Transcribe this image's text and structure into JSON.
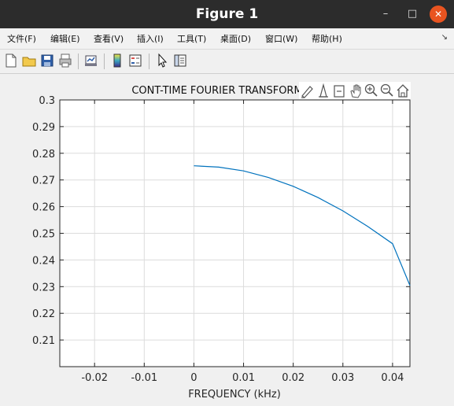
{
  "window": {
    "title": "Figure 1"
  },
  "menubar": {
    "items": [
      {
        "label": "文件(F)"
      },
      {
        "label": "编辑(E)"
      },
      {
        "label": "查看(V)"
      },
      {
        "label": "插入(I)"
      },
      {
        "label": "工具(T)"
      },
      {
        "label": "桌面(D)"
      },
      {
        "label": "窗口(W)"
      },
      {
        "label": "帮助(H)"
      }
    ]
  },
  "axes_toolbar_icons": [
    "edit-brush-icon",
    "data-cursor-icon",
    "link-icon",
    "pan-icon",
    "zoom-in-icon",
    "zoom-out-icon",
    "home-icon"
  ],
  "colors": {
    "line": "#0072bd",
    "titlebar": "#2c2c2c",
    "close": "#e95420"
  },
  "chart_data": {
    "type": "line",
    "title": "CONT-TIME FOURIER TRANSFORM",
    "xlabel": "FREQUENCY (kHz)",
    "ylabel": "",
    "xlim": [
      -0.027,
      0.0435
    ],
    "ylim": [
      0.2,
      0.3
    ],
    "xticks": [
      -0.02,
      -0.01,
      0,
      0.01,
      0.02,
      0.03,
      0.04
    ],
    "xtick_labels": [
      "-0.02",
      "-0.01",
      "0",
      "0.01",
      "0.02",
      "0.03",
      "0.04"
    ],
    "yticks": [
      0.21,
      0.22,
      0.23,
      0.24,
      0.25,
      0.26,
      0.27,
      0.28,
      0.29,
      0.3
    ],
    "ytick_labels": [
      "0.21",
      "0.22",
      "0.23",
      "0.24",
      "0.25",
      "0.26",
      "0.27",
      "0.28",
      "0.29",
      "0.3"
    ],
    "grid": true,
    "series": [
      {
        "x": [
          0,
          0.005,
          0.01,
          0.015,
          0.02,
          0.025,
          0.03,
          0.035,
          0.04,
          0.0435
        ],
        "y": [
          0.2753,
          0.2748,
          0.2734,
          0.2709,
          0.2676,
          0.2634,
          0.2584,
          0.2526,
          0.2461,
          0.2304
        ]
      }
    ]
  }
}
